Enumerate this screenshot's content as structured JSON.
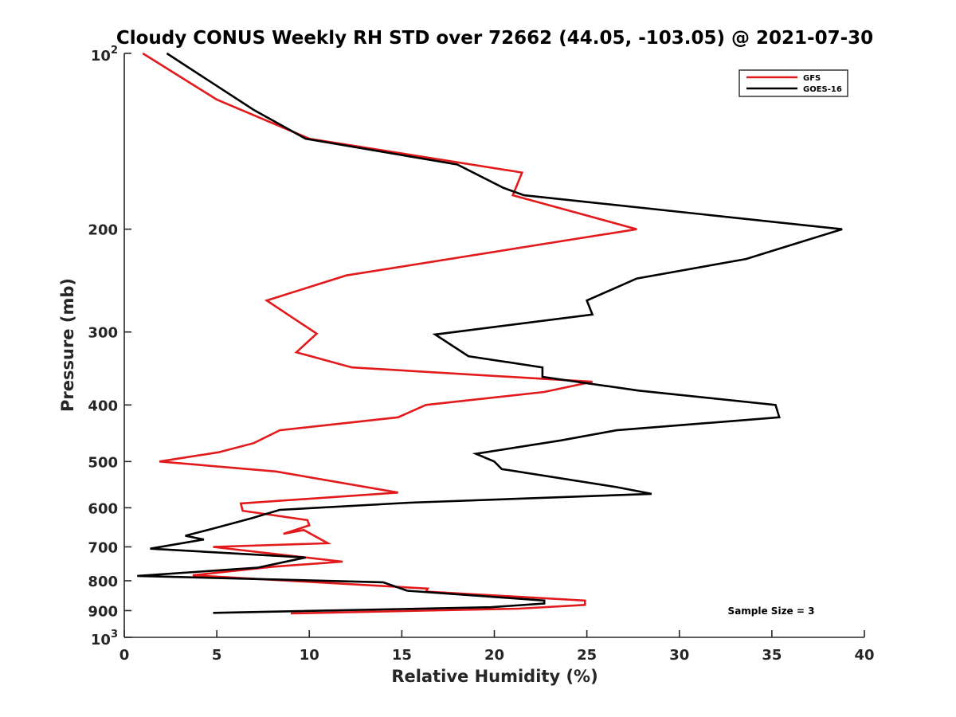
{
  "chart_data": {
    "type": "line",
    "title": "Cloudy CONUS Weekly RH STD over 72662 (44.05, -103.05) @ 2021-07-30",
    "xlabel": "Relative Humidity (%)",
    "ylabel": "Pressure (mb)",
    "xlim": [
      0,
      40
    ],
    "ylim": [
      100,
      1000
    ],
    "yscale": "log",
    "y_reversed": true,
    "xticks": [
      0,
      5,
      10,
      15,
      20,
      25,
      30,
      35,
      40
    ],
    "xtick_labels": [
      "0",
      "5",
      "10",
      "15",
      "20",
      "25",
      "30",
      "35",
      "40"
    ],
    "yticks": [
      200,
      300,
      400,
      500,
      600,
      700,
      800,
      900
    ],
    "ytick_labels": [
      "200",
      "300",
      "400",
      "500",
      "600",
      "700",
      "800",
      "900"
    ],
    "ytick_minor": [
      100,
      1000
    ],
    "ytick_minor_labels": [
      {
        "base": "10",
        "exp": "2"
      },
      {
        "base": "10",
        "exp": "3"
      }
    ],
    "grid": false,
    "legend_position": "top-right",
    "annotation": "Sample Size = 3",
    "series": [
      {
        "name": "GFS",
        "color": "#e31a1c",
        "points": [
          [
            1.0,
            100
          ],
          [
            5.0,
            120
          ],
          [
            10.0,
            140
          ],
          [
            21.5,
            160
          ],
          [
            21.0,
            175
          ],
          [
            27.7,
            200
          ],
          [
            12.0,
            240
          ],
          [
            7.7,
            265
          ],
          [
            10.4,
            302
          ],
          [
            9.3,
            325
          ],
          [
            12.3,
            345
          ],
          [
            25.3,
            365
          ],
          [
            22.7,
            380
          ],
          [
            16.3,
            400
          ],
          [
            14.8,
            420
          ],
          [
            8.4,
            442
          ],
          [
            7.0,
            465
          ],
          [
            5.1,
            482
          ],
          [
            1.9,
            500
          ],
          [
            8.2,
            520
          ],
          [
            14.8,
            565
          ],
          [
            6.3,
            590
          ],
          [
            6.4,
            607
          ],
          [
            9.9,
            630
          ],
          [
            10.0,
            643
          ],
          [
            8.6,
            665
          ],
          [
            9.7,
            655
          ],
          [
            11.0,
            690
          ],
          [
            4.8,
            700
          ],
          [
            11.8,
            742
          ],
          [
            8.0,
            757
          ],
          [
            3.7,
            783
          ],
          [
            16.4,
            825
          ],
          [
            16.3,
            835
          ],
          [
            24.9,
            865
          ],
          [
            24.9,
            880
          ],
          [
            21.3,
            893
          ],
          [
            9.0,
            910
          ]
        ]
      },
      {
        "name": "GOES-16",
        "color": "#000000",
        "points": [
          [
            2.3,
            100
          ],
          [
            7.0,
            125
          ],
          [
            9.8,
            140
          ],
          [
            18.0,
            155
          ],
          [
            20.5,
            170
          ],
          [
            21.6,
            175
          ],
          [
            38.8,
            200
          ],
          [
            33.6,
            225
          ],
          [
            27.7,
            243
          ],
          [
            25.0,
            265
          ],
          [
            25.3,
            280
          ],
          [
            16.8,
            303
          ],
          [
            18.6,
            330
          ],
          [
            22.6,
            345
          ],
          [
            22.6,
            358
          ],
          [
            27.8,
            378
          ],
          [
            35.2,
            400
          ],
          [
            35.4,
            420
          ],
          [
            26.6,
            442
          ],
          [
            23.6,
            460
          ],
          [
            19.0,
            485
          ],
          [
            20.0,
            500
          ],
          [
            20.4,
            515
          ],
          [
            26.6,
            553
          ],
          [
            28.5,
            568
          ],
          [
            15.4,
            588
          ],
          [
            8.4,
            605
          ],
          [
            6.9,
            625
          ],
          [
            4.9,
            650
          ],
          [
            3.3,
            670
          ],
          [
            4.3,
            680
          ],
          [
            1.4,
            705
          ],
          [
            9.8,
            730
          ],
          [
            7.2,
            760
          ],
          [
            0.7,
            785
          ],
          [
            14.0,
            805
          ],
          [
            15.3,
            832
          ],
          [
            22.7,
            865
          ],
          [
            22.7,
            875
          ],
          [
            19.8,
            888
          ],
          [
            4.8,
            908
          ]
        ]
      }
    ]
  }
}
